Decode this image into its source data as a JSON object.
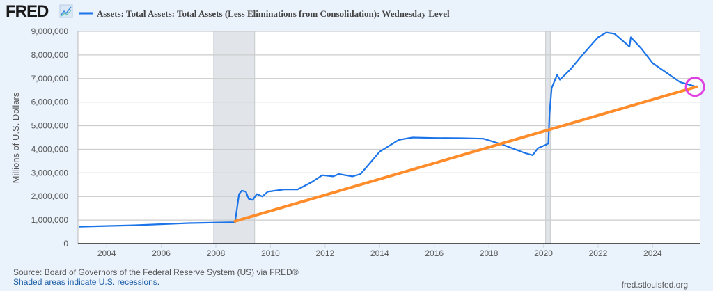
{
  "header": {
    "logo_text": "FRED",
    "logo_icon": "chart-line-icon",
    "legend_label": "Assets: Total Assets: Total Assets (Less Eliminations from Consolidation): Wednesday Level"
  },
  "footer": {
    "source": "Source: Board of Governors of the Federal Reserve System (US) via FRED®",
    "recession_note": "Shaded areas indicate U.S. recessions.",
    "site": "fred.stlouisfed.org"
  },
  "colors": {
    "series": "#1a73e8",
    "trend": "#ff8c2a",
    "highlight": "#e040e0",
    "recession": "#e1e5ea",
    "grid": "#cccccc"
  },
  "chart_data": {
    "type": "line",
    "title": "Assets: Total Assets: Total Assets (Less Eliminations from Consolidation): Wednesday Level",
    "xlabel": "",
    "ylabel": "Millions of U.S. Dollars",
    "xlim": [
      2002.95,
      2025.75
    ],
    "ylim": [
      0,
      9000000
    ],
    "grid": true,
    "legend": "top-left",
    "x_ticks": [
      2004,
      2006,
      2008,
      2010,
      2012,
      2014,
      2016,
      2018,
      2020,
      2022,
      2024
    ],
    "x_tick_labels": [
      "2004",
      "2006",
      "2008",
      "2010",
      "2012",
      "2014",
      "2016",
      "2018",
      "2020",
      "2022",
      "2024"
    ],
    "y_ticks": [
      0,
      1000000,
      2000000,
      3000000,
      4000000,
      5000000,
      6000000,
      7000000,
      8000000,
      9000000
    ],
    "y_tick_labels": [
      "0",
      "1,000,000",
      "2,000,000",
      "3,000,000",
      "4,000,000",
      "5,000,000",
      "6,000,000",
      "7,000,000",
      "8,000,000",
      "9,000,000"
    ],
    "recessions": [
      [
        2007.92,
        2009.42
      ],
      [
        2020.08,
        2020.25
      ]
    ],
    "series": [
      {
        "name": "Assets: Total Assets: Total Assets (Less Eliminations from Consolidation): Wednesday Level",
        "x": [
          2003.0,
          2005.0,
          2007.0,
          2008.7,
          2008.75,
          2008.85,
          2008.95,
          2009.1,
          2009.2,
          2009.35,
          2009.5,
          2009.7,
          2009.9,
          2010.5,
          2011.0,
          2011.5,
          2011.9,
          2012.3,
          2012.5,
          2013.0,
          2013.3,
          2014.0,
          2014.7,
          2015.2,
          2016.0,
          2017.0,
          2017.8,
          2018.5,
          2019.3,
          2019.6,
          2019.8,
          2020.1,
          2020.18,
          2020.22,
          2020.3,
          2020.5,
          2020.6,
          2021.0,
          2021.5,
          2022.0,
          2022.3,
          2022.6,
          2023.0,
          2023.15,
          2023.2,
          2023.6,
          2024.0,
          2024.5,
          2025.0,
          2025.6
        ],
        "values": [
          720000,
          780000,
          870000,
          910000,
          1300000,
          2100000,
          2250000,
          2200000,
          1900000,
          1850000,
          2100000,
          2000000,
          2200000,
          2300000,
          2300000,
          2600000,
          2900000,
          2850000,
          2950000,
          2850000,
          2950000,
          3900000,
          4400000,
          4500000,
          4480000,
          4470000,
          4450000,
          4200000,
          3850000,
          3750000,
          4050000,
          4200000,
          4250000,
          5500000,
          6600000,
          7150000,
          6950000,
          7400000,
          8100000,
          8750000,
          8950000,
          8900000,
          8500000,
          8350000,
          8750000,
          8250000,
          7650000,
          7250000,
          6850000,
          6650000
        ]
      },
      {
        "name": "trend-line-annotation",
        "x": [
          2008.7,
          2025.6
        ],
        "values": [
          950000,
          6650000
        ]
      }
    ],
    "annotations": [
      {
        "type": "circle",
        "x": 2025.6,
        "value": 6650000
      }
    ]
  }
}
